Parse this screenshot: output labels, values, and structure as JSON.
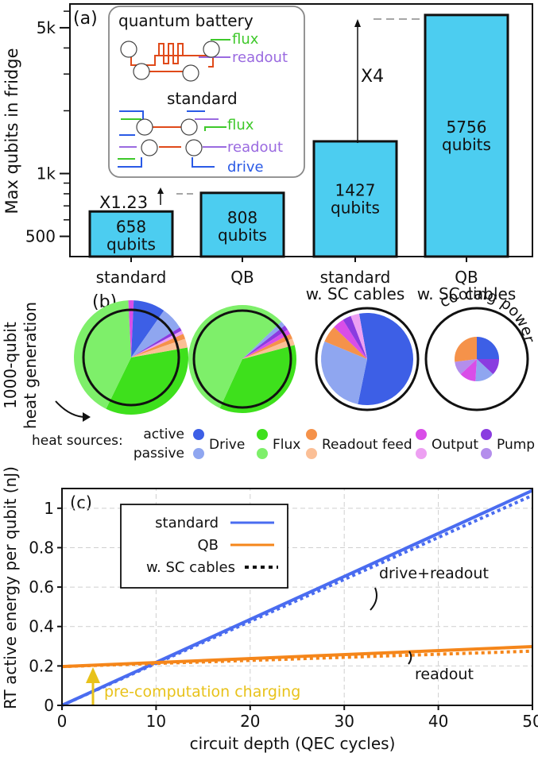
{
  "colors": {
    "bar_fill": "#4ccdf0",
    "drive_active": "#3d5fe6",
    "drive_passive": "#8fa6f0",
    "flux_active": "#3ee01c",
    "flux_passive": "#7eef6a",
    "readout_active": "#f5924a",
    "readout_passive": "#fbbf96",
    "output_active": "#d94ee8",
    "output_passive": "#eda0f2",
    "pump_active": "#8a3ce0",
    "pump_passive": "#b48eec",
    "standard_line": "#4a6cf0",
    "qb_line": "#f5861a",
    "charging": "#e8c21a",
    "inset_flux": "#3ec82a",
    "inset_readout": "#9a6ae0",
    "inset_drive": "#2a5ae6",
    "inset_wire": "#e04a1a"
  },
  "panel_a": {
    "label": "(a)",
    "ylabel": "Max qubits in fridge",
    "yticks": [
      {
        "value": 500,
        "label": "500"
      },
      {
        "value": 1000,
        "label": "1k"
      },
      {
        "value": 5000,
        "label": "5k"
      }
    ],
    "bars": [
      {
        "category": "standard",
        "value": 658,
        "line1": "658",
        "line2": "qubits",
        "cat1": "standard",
        "cat2": ""
      },
      {
        "category": "QB",
        "value": 808,
        "line1": "808",
        "line2": "qubits",
        "cat1": "QB",
        "cat2": ""
      },
      {
        "category": "standard w. SC cables",
        "value": 1427,
        "line1": "1427",
        "line2": "qubits",
        "cat1": "standard",
        "cat2": "w. SC cables"
      },
      {
        "category": "QB w. SC cables",
        "value": 5756,
        "line1": "5756",
        "line2": "qubits",
        "cat1": "QB",
        "cat2": "w. SC cables"
      }
    ],
    "annotations": {
      "x123": "X1.23",
      "x4": "X4"
    },
    "inset": {
      "title_qb": "quantum battery",
      "title_std": "standard",
      "flux": "flux",
      "readout": "readout",
      "drive": "drive"
    }
  },
  "panel_b": {
    "label": "(b)",
    "ylabel_line1": "1000-qubit",
    "ylabel_line2": "heat generation",
    "cooling_label": "cooling power",
    "legend_title": "heat sources:",
    "legend_active": "active",
    "legend_passive": "passive",
    "legend_items": [
      "Drive",
      "Flux",
      "Readout feed",
      "Output",
      "Pump"
    ]
  },
  "chart_data": [
    {
      "type": "bar",
      "title": "",
      "ylabel": "Max qubits in fridge",
      "yscale": "log",
      "ylim": [
        400,
        6500
      ],
      "categories": [
        "standard",
        "QB",
        "standard w. SC cables",
        "QB w. SC cables"
      ],
      "values": [
        658,
        808,
        1427,
        5756
      ]
    },
    {
      "type": "pie",
      "title": "1000-qubit heat generation",
      "pies": [
        {
          "name": "standard",
          "slices": [
            {
              "label": "Flux active",
              "value": 35,
              "color": "flux_active"
            },
            {
              "label": "Flux passive",
              "value": 42,
              "color": "flux_passive"
            },
            {
              "label": "Output active",
              "value": 1.5,
              "color": "output_active"
            },
            {
              "label": "Drive active",
              "value": 9,
              "color": "drive_active"
            },
            {
              "label": "Drive passive",
              "value": 6.5,
              "color": "drive_passive"
            },
            {
              "label": "Pump active",
              "value": 1,
              "color": "pump_active"
            },
            {
              "label": "Output passive",
              "value": 1,
              "color": "output_passive"
            },
            {
              "label": "Readout feed active",
              "value": 1.5,
              "color": "readout_active"
            },
            {
              "label": "Readout feed passive",
              "value": 2.5,
              "color": "readout_passive"
            }
          ]
        },
        {
          "name": "QB",
          "slices": [
            {
              "label": "Flux active",
              "value": 36,
              "color": "flux_active"
            },
            {
              "label": "Flux passive",
              "value": 56,
              "color": "flux_passive"
            },
            {
              "label": "Drive passive",
              "value": 1.5,
              "color": "drive_passive"
            },
            {
              "label": "Pump active",
              "value": 1.5,
              "color": "pump_active"
            },
            {
              "label": "Output active",
              "value": 1.5,
              "color": "output_active"
            },
            {
              "label": "Readout feed active",
              "value": 1.5,
              "color": "readout_active"
            },
            {
              "label": "Readout feed passive",
              "value": 2,
              "color": "readout_passive"
            }
          ]
        },
        {
          "name": "standard w. SC cables",
          "slices": [
            {
              "label": "Drive active",
              "value": 56,
              "color": "drive_active"
            },
            {
              "label": "Drive passive",
              "value": 28,
              "color": "drive_passive"
            },
            {
              "label": "Readout feed active",
              "value": 6,
              "color": "readout_active"
            },
            {
              "label": "Output active",
              "value": 4,
              "color": "output_active"
            },
            {
              "label": "Pump active",
              "value": 3,
              "color": "pump_active"
            },
            {
              "label": "Output passive",
              "value": 3,
              "color": "output_passive"
            }
          ]
        },
        {
          "name": "QB w. SC cables",
          "slices": [
            {
              "label": "Drive active",
              "value": 25,
              "color": "drive_active"
            },
            {
              "label": "Pump active",
              "value": 12,
              "color": "pump_active"
            },
            {
              "label": "Drive passive",
              "value": 14,
              "color": "drive_passive"
            },
            {
              "label": "Output active",
              "value": 12,
              "color": "output_active"
            },
            {
              "label": "Pump passive",
              "value": 10,
              "color": "pump_passive"
            },
            {
              "label": "Readout feed active",
              "value": 27,
              "color": "readout_active"
            }
          ]
        }
      ]
    },
    {
      "type": "line",
      "title": "",
      "label": "(c)",
      "xlabel": "circuit depth (QEC cycles)",
      "ylabel": "RT active energy per qubit (nJ)",
      "xlim": [
        0,
        50
      ],
      "ylim": [
        0,
        1.1
      ],
      "xticks": [
        0,
        10,
        20,
        30,
        40,
        50
      ],
      "yticks": [
        0,
        0.2,
        0.4,
        0.6,
        0.8,
        1
      ],
      "xtick_labels": [
        "0",
        "10",
        "20",
        "30",
        "40",
        "50"
      ],
      "ytick_labels": [
        "0",
        "0.2",
        "0.4",
        "0.6",
        "0.8",
        "1"
      ],
      "grid": true,
      "series": [
        {
          "name": "standard",
          "style": "solid",
          "color": "standard_line",
          "x": [
            0,
            50
          ],
          "y": [
            0,
            1.09
          ]
        },
        {
          "name": "standard w. SC cables",
          "style": "dotted",
          "color": "standard_line",
          "x": [
            0,
            50
          ],
          "y": [
            0,
            1.065
          ]
        },
        {
          "name": "QB",
          "style": "solid",
          "color": "qb_line",
          "x": [
            0,
            50
          ],
          "y": [
            0.197,
            0.298
          ]
        },
        {
          "name": "QB w. SC cables",
          "style": "dotted",
          "color": "qb_line",
          "x": [
            0,
            50
          ],
          "y": [
            0.197,
            0.275
          ]
        }
      ],
      "legend": [
        {
          "label": "standard",
          "kind": "standard"
        },
        {
          "label": "QB",
          "kind": "qb"
        },
        {
          "label": "w. SC cables",
          "kind": "dotted"
        }
      ],
      "annotations": {
        "drive_readout": "drive+readout",
        "readout": "readout",
        "charging": "pre-computation charging",
        "charging_x": 3
      }
    }
  ]
}
